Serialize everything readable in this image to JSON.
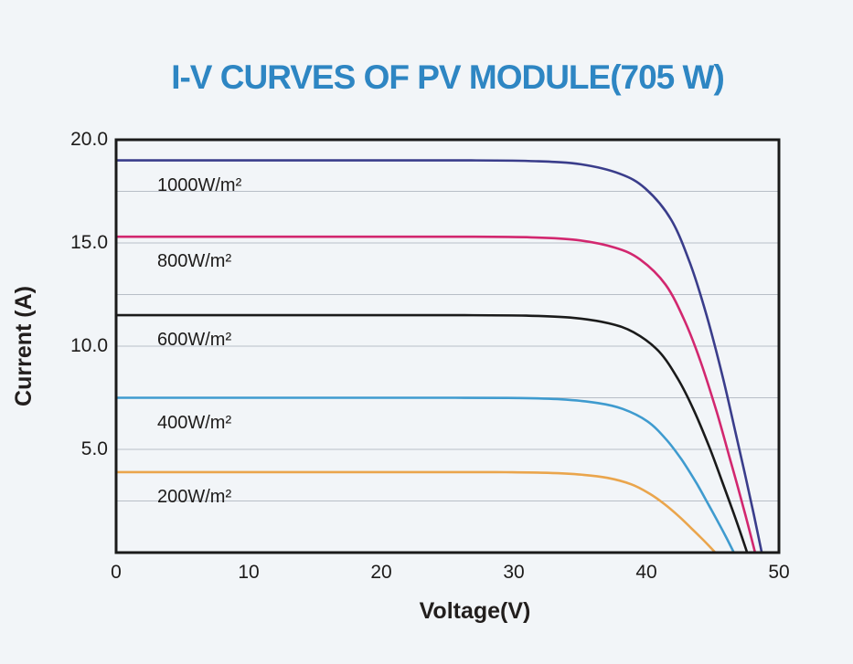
{
  "title": "I-V CURVES OF PV MODULE(705 W)",
  "colors": {
    "background": "#f2f5f8",
    "title": "#2e86c3",
    "axis": "#1a1a1a",
    "grid": "#b8bec7",
    "text": "#1d1b1a"
  },
  "chart_data": {
    "type": "line",
    "title": "I-V CURVES OF PV MODULE(705 W)",
    "xlabel": "Voltage(V)",
    "ylabel": "Current (A)",
    "xlim": [
      0,
      50
    ],
    "ylim": [
      0,
      20
    ],
    "grid": {
      "horizontal_step": 2.5,
      "vertical": false,
      "color": "#b8bec7"
    },
    "legend_position": "labels-inside-plot-left",
    "xticks": [
      {
        "value": 0,
        "label": "0"
      },
      {
        "value": 10,
        "label": "10"
      },
      {
        "value": 20,
        "label": "20"
      },
      {
        "value": 30,
        "label": "30"
      },
      {
        "value": 40,
        "label": "40"
      },
      {
        "value": 50,
        "label": "50"
      }
    ],
    "yticks": [
      {
        "value": 5,
        "label": "5.0"
      },
      {
        "value": 10,
        "label": "10.0"
      },
      {
        "value": 15,
        "label": "15.0"
      },
      {
        "value": 20,
        "label": "20.0"
      }
    ],
    "series": [
      {
        "id": "1000",
        "label": "1000W/m²",
        "irradiance_w_m2": 1000,
        "isc_a": 19.0,
        "voc_v": 48.7,
        "color": "#3a3d8b"
      },
      {
        "id": "800",
        "label": "800W/m²",
        "irradiance_w_m2": 800,
        "isc_a": 15.3,
        "voc_v": 48.2,
        "color": "#d2276f"
      },
      {
        "id": "600",
        "label": "600W/m²",
        "irradiance_w_m2": 600,
        "isc_a": 11.5,
        "voc_v": 47.6,
        "color": "#1a1a1a"
      },
      {
        "id": "400",
        "label": "400W/m²",
        "irradiance_w_m2": 400,
        "isc_a": 7.5,
        "voc_v": 46.6,
        "color": "#3f9bcf"
      },
      {
        "id": "200",
        "label": "200W/m²",
        "irradiance_w_m2": 200,
        "isc_a": 3.9,
        "voc_v": 45.2,
        "color": "#eaa54c"
      }
    ],
    "curve_shape_normalized": [
      [
        0.0,
        1.0
      ],
      [
        0.35,
        1.0
      ],
      [
        0.55,
        1.0
      ],
      [
        0.65,
        0.998
      ],
      [
        0.72,
        0.99
      ],
      [
        0.78,
        0.966
      ],
      [
        0.82,
        0.928
      ],
      [
        0.86,
        0.848
      ],
      [
        0.89,
        0.733
      ],
      [
        0.915,
        0.603
      ],
      [
        0.94,
        0.445
      ],
      [
        0.96,
        0.302
      ],
      [
        0.975,
        0.193
      ],
      [
        0.988,
        0.095
      ],
      [
        1.0,
        0.0
      ]
    ]
  }
}
